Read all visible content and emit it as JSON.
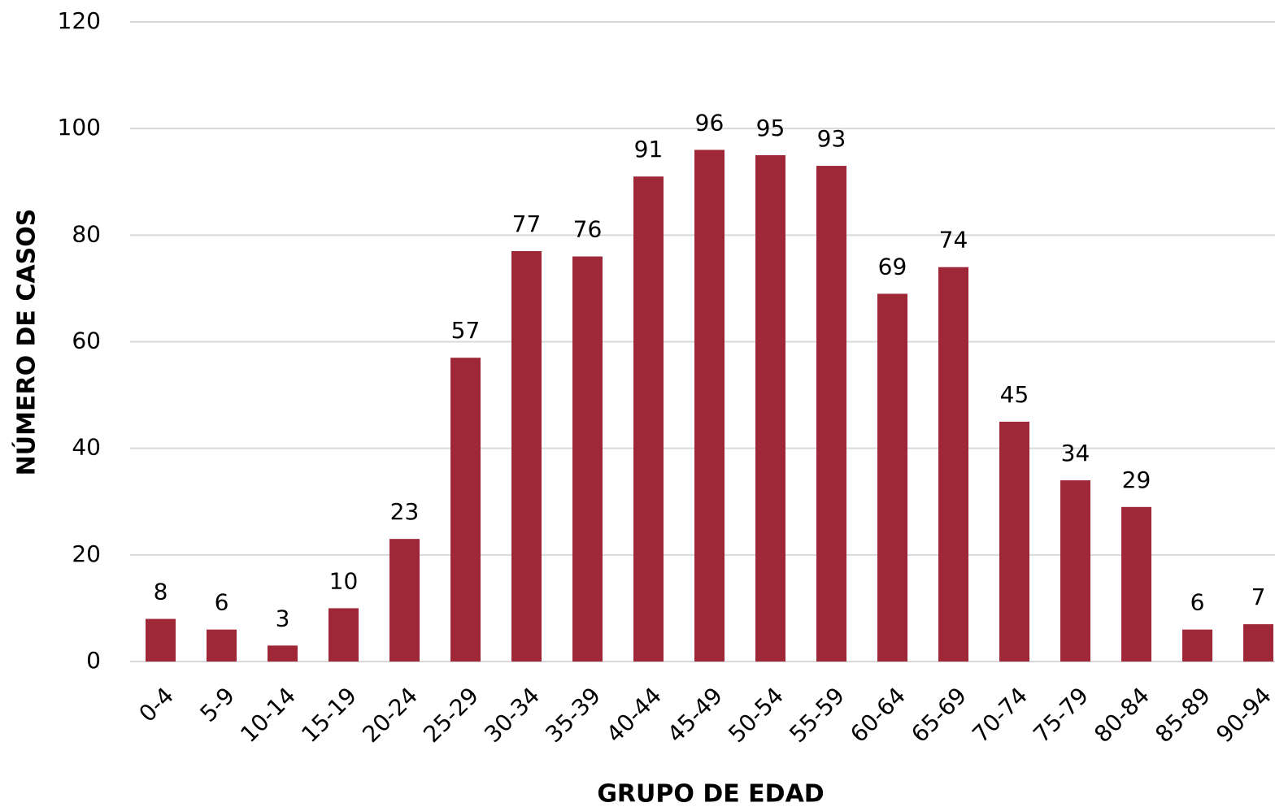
{
  "chart_data": {
    "type": "bar",
    "categories": [
      "0-4",
      "5-9",
      "10-14",
      "15-19",
      "20-24",
      "25-29",
      "30-34",
      "35-39",
      "40-44",
      "45-49",
      "50-54",
      "55-59",
      "60-64",
      "65-69",
      "70-74",
      "75-79",
      "80-84",
      "85-89",
      "90-94"
    ],
    "values": [
      8,
      6,
      3,
      10,
      23,
      57,
      77,
      76,
      91,
      96,
      95,
      93,
      69,
      74,
      45,
      34,
      29,
      6,
      7
    ],
    "color": "#9e2837",
    "ylim": [
      0,
      120
    ],
    "yticks": [
      0,
      20,
      40,
      60,
      80,
      100,
      120
    ],
    "grid": true,
    "xlabel": "GRUPO DE EDAD",
    "ylabel": "NÚMERO DE CASOS"
  }
}
